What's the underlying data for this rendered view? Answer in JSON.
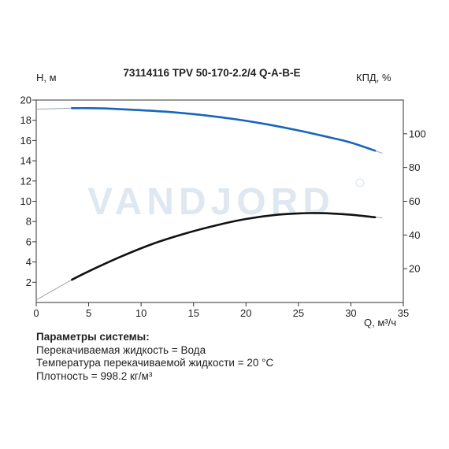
{
  "chart_data": {
    "type": "line",
    "title": "73114116 TPV 50-170-2.2/4 Q-A-B-E",
    "xlabel": "Q, м³/ч",
    "ylabel_left": "H, м",
    "ylabel_right": "КПД, %",
    "xlim": [
      0,
      35
    ],
    "ylim_left": [
      0,
      20
    ],
    "ylim_right": [
      0,
      120
    ],
    "x_ticks": [
      "0",
      "5",
      "10",
      "15",
      "20",
      "25",
      "30",
      "35"
    ],
    "y_left_ticks": [
      "2",
      "4",
      "6",
      "8",
      "10",
      "12",
      "14",
      "16",
      "18",
      "20"
    ],
    "y_right_ticks": [
      "20",
      "40",
      "60",
      "80",
      "100"
    ],
    "grid": false,
    "watermark": "VANDJORD",
    "colors": {
      "head": "#1565c0",
      "efficiency": "#111111",
      "extension": "#9aa4b0"
    },
    "series": [
      {
        "axis": "left",
        "color": "#1565c0",
        "x": [
          3.4,
          5,
          7,
          10,
          13,
          16,
          19,
          22,
          25,
          28,
          30,
          32.3
        ],
        "values": [
          19.2,
          19.2,
          19.15,
          19.0,
          18.8,
          18.5,
          18.1,
          17.6,
          17.0,
          16.3,
          15.8,
          15.0
        ]
      },
      {
        "axis": "right",
        "color": "#111111",
        "x": [
          3.4,
          5,
          8,
          11,
          14,
          17,
          20,
          23,
          26,
          28,
          30,
          32.3
        ],
        "values": [
          13.5,
          18.5,
          27.0,
          34.5,
          40.5,
          45.5,
          49.5,
          52.0,
          53.0,
          52.8,
          52.0,
          50.5
        ]
      }
    ],
    "extensions": [
      {
        "axis": "left",
        "x": [
          0,
          3.4
        ],
        "values": [
          19.1,
          19.2
        ]
      },
      {
        "axis": "left",
        "x": [
          32.3,
          33.0
        ],
        "values": [
          15.0,
          14.75
        ]
      },
      {
        "axis": "right",
        "x": [
          0,
          3.4
        ],
        "values": [
          1.5,
          13.5
        ]
      },
      {
        "axis": "right",
        "x": [
          32.3,
          33.0
        ],
        "values": [
          50.5,
          50.2
        ]
      }
    ]
  },
  "params": {
    "title": "Параметры системы:",
    "lines": [
      "Перекачиваемая жидкость = Вода",
      "Температура перекачиваемой жидкости = 20 °C",
      "Плотность = 998.2 кг/м³"
    ]
  }
}
